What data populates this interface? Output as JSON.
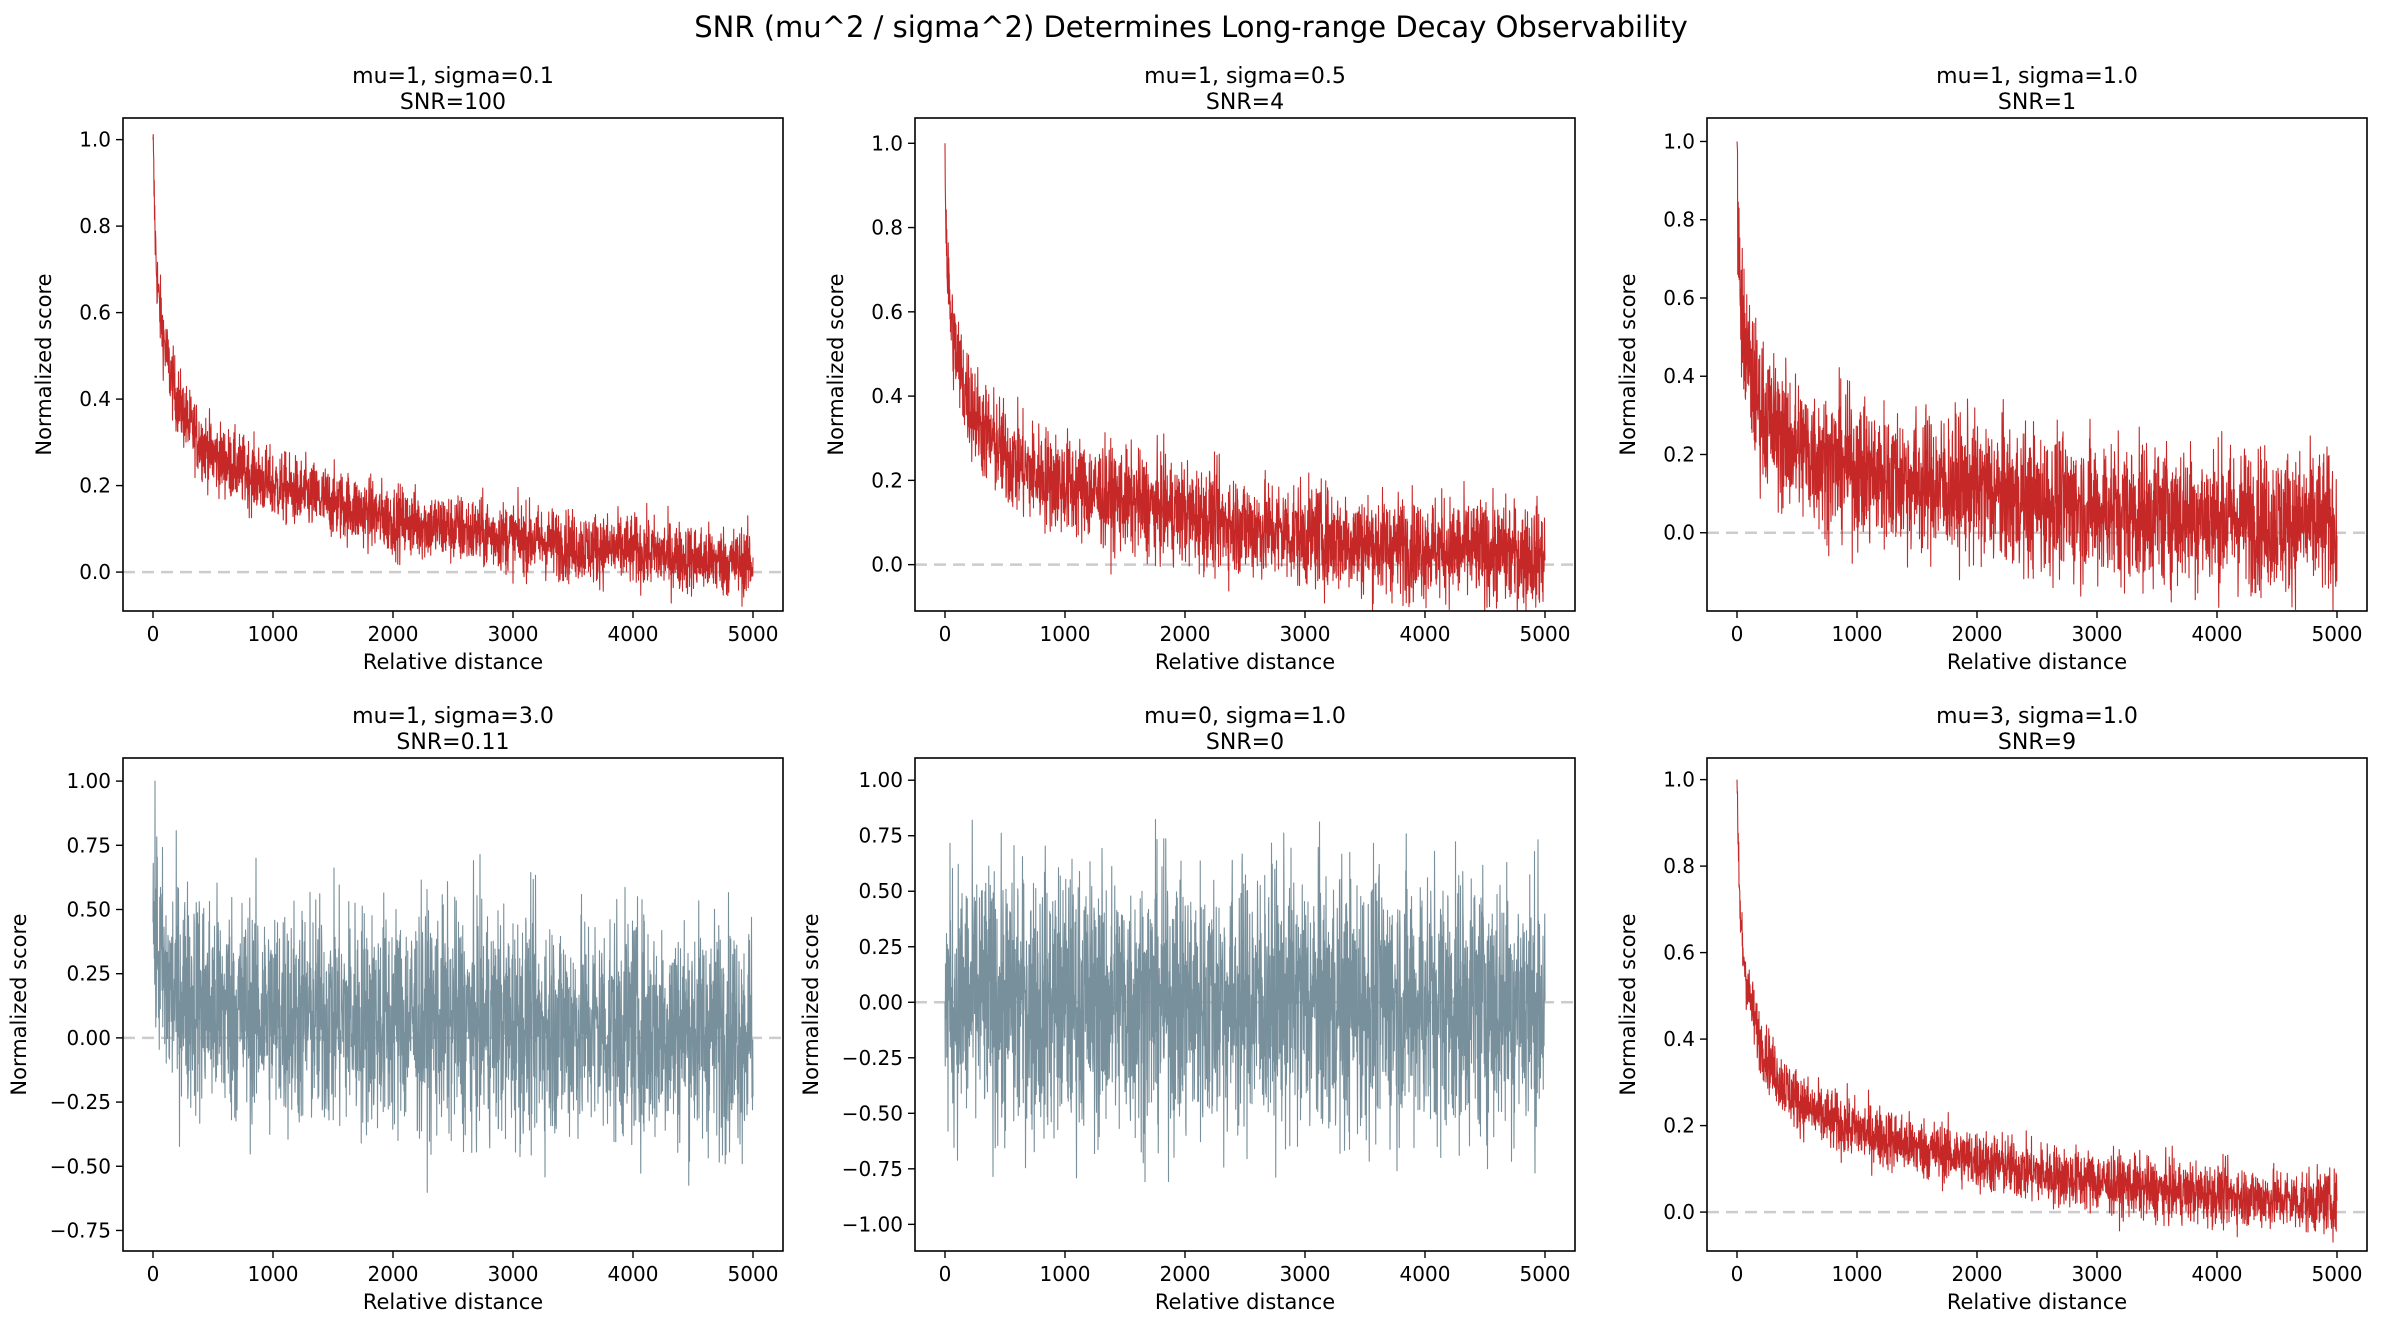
{
  "figure": {
    "title": "SNR (mu^2 / sigma^2) Determines Long-range Decay Observability"
  },
  "chart_data": [
    {
      "type": "line",
      "title": "mu=1, sigma=0.1",
      "subtitle": "SNR=100",
      "xlabel": "Relative distance",
      "ylabel": "Normalized score",
      "xlim": [
        -250,
        5250
      ],
      "ylim": [
        -0.09,
        1.05
      ],
      "xticks": [
        0,
        1000,
        2000,
        3000,
        4000,
        5000
      ],
      "yticks": [
        0.0,
        0.2,
        0.4,
        0.6,
        0.8,
        1.0
      ],
      "ytick_labels": [
        "0.0",
        "0.2",
        "0.4",
        "0.6",
        "0.8",
        "1.0"
      ],
      "baseline": 0.0,
      "color": "#c62828",
      "series": [
        {
          "x": [
            0,
            10,
            25,
            50,
            100,
            150,
            200,
            300,
            400,
            500,
            700,
            1000,
            1500,
            2000,
            2500,
            3000,
            3500,
            4000,
            4500,
            5000
          ],
          "values": [
            1.0,
            0.86,
            0.72,
            0.62,
            0.52,
            0.45,
            0.4,
            0.34,
            0.3,
            0.27,
            0.24,
            0.2,
            0.16,
            0.12,
            0.1,
            0.08,
            0.06,
            0.05,
            0.03,
            0.02
          ],
          "noise": 0.04
        }
      ]
    },
    {
      "type": "line",
      "title": "mu=1, sigma=0.5",
      "subtitle": "SNR=4",
      "xlabel": "Relative distance",
      "ylabel": "Normalized score",
      "xlim": [
        -250,
        5250
      ],
      "ylim": [
        -0.11,
        1.06
      ],
      "xticks": [
        0,
        1000,
        2000,
        3000,
        4000,
        5000
      ],
      "yticks": [
        0.0,
        0.2,
        0.4,
        0.6,
        0.8,
        1.0
      ],
      "ytick_labels": [
        "0.0",
        "0.2",
        "0.4",
        "0.6",
        "0.8",
        "1.0"
      ],
      "baseline": 0.0,
      "color": "#c62828",
      "series": [
        {
          "x": [
            0,
            10,
            25,
            50,
            100,
            150,
            200,
            300,
            400,
            500,
            700,
            1000,
            1500,
            2000,
            2500,
            3000,
            3500,
            4000,
            4500,
            5000
          ],
          "values": [
            1.0,
            0.78,
            0.68,
            0.58,
            0.49,
            0.43,
            0.39,
            0.33,
            0.29,
            0.26,
            0.22,
            0.19,
            0.15,
            0.12,
            0.09,
            0.07,
            0.05,
            0.04,
            0.03,
            0.02
          ],
          "noise": 0.06
        }
      ]
    },
    {
      "type": "line",
      "title": "mu=1, sigma=1.0",
      "subtitle": "SNR=1",
      "xlabel": "Relative distance",
      "ylabel": "Normalized score",
      "xlim": [
        -250,
        5250
      ],
      "ylim": [
        -0.2,
        1.06
      ],
      "xticks": [
        0,
        1000,
        2000,
        3000,
        4000,
        5000
      ],
      "yticks": [
        0.0,
        0.2,
        0.4,
        0.6,
        0.8,
        1.0
      ],
      "ytick_labels": [
        "0.0",
        "0.2",
        "0.4",
        "0.6",
        "0.8",
        "1.0"
      ],
      "baseline": 0.0,
      "color": "#c62828",
      "series": [
        {
          "x": [
            0,
            10,
            25,
            50,
            100,
            150,
            200,
            300,
            400,
            500,
            700,
            1000,
            1500,
            2000,
            2500,
            3000,
            3500,
            4000,
            4500,
            5000
          ],
          "values": [
            1.0,
            0.75,
            0.62,
            0.52,
            0.42,
            0.36,
            0.32,
            0.27,
            0.24,
            0.22,
            0.19,
            0.16,
            0.13,
            0.11,
            0.08,
            0.06,
            0.05,
            0.04,
            0.03,
            0.02
          ],
          "noise": 0.09
        }
      ]
    },
    {
      "type": "line",
      "title": "mu=1, sigma=3.0",
      "subtitle": "SNR=0.11",
      "xlabel": "Relative distance",
      "ylabel": "Normalized score",
      "xlim": [
        -250,
        5250
      ],
      "ylim": [
        -0.83,
        1.09
      ],
      "xticks": [
        0,
        1000,
        2000,
        3000,
        4000,
        5000
      ],
      "yticks": [
        -0.75,
        -0.5,
        -0.25,
        0.0,
        0.25,
        0.5,
        0.75,
        1.0
      ],
      "ytick_labels": [
        "−0.75",
        "−0.50",
        "−0.25",
        "0.00",
        "0.25",
        "0.50",
        "0.75",
        "1.00"
      ],
      "baseline": 0.0,
      "color": "#78909c",
      "series": [
        {
          "x": [
            0,
            100,
            500,
            1000,
            2000,
            3000,
            4000,
            5000
          ],
          "values": [
            0.45,
            0.2,
            0.12,
            0.09,
            0.07,
            0.05,
            0.04,
            0.03
          ],
          "noise": 0.22
        }
      ]
    },
    {
      "type": "line",
      "title": "mu=0, sigma=1.0",
      "subtitle": "SNR=0",
      "xlabel": "Relative distance",
      "ylabel": "Normalized score",
      "xlim": [
        -250,
        5250
      ],
      "ylim": [
        -1.12,
        1.1
      ],
      "xticks": [
        0,
        1000,
        2000,
        3000,
        4000,
        5000
      ],
      "yticks": [
        -1.0,
        -0.75,
        -0.5,
        -0.25,
        0.0,
        0.25,
        0.5,
        0.75,
        1.0
      ],
      "ytick_labels": [
        "−1.00",
        "−0.75",
        "−0.50",
        "−0.25",
        "0.00",
        "0.25",
        "0.50",
        "0.75",
        "1.00"
      ],
      "baseline": 0.0,
      "color": "#78909c",
      "series": [
        {
          "x": [
            0,
            5000
          ],
          "values": [
            0.0,
            0.0
          ],
          "noise": 0.3
        }
      ]
    },
    {
      "type": "line",
      "title": "mu=3, sigma=1.0",
      "subtitle": "SNR=9",
      "xlabel": "Relative distance",
      "ylabel": "Normalized score",
      "xlim": [
        -250,
        5250
      ],
      "ylim": [
        -0.09,
        1.05
      ],
      "xticks": [
        0,
        1000,
        2000,
        3000,
        4000,
        5000
      ],
      "yticks": [
        0.0,
        0.2,
        0.4,
        0.6,
        0.8,
        1.0
      ],
      "ytick_labels": [
        "0.0",
        "0.2",
        "0.4",
        "0.6",
        "0.8",
        "1.0"
      ],
      "baseline": 0.0,
      "color": "#c62828",
      "series": [
        {
          "x": [
            0,
            10,
            25,
            50,
            100,
            150,
            200,
            300,
            400,
            500,
            700,
            1000,
            1500,
            2000,
            2500,
            3000,
            3500,
            4000,
            4500,
            5000
          ],
          "values": [
            1.0,
            0.82,
            0.7,
            0.6,
            0.5,
            0.44,
            0.39,
            0.33,
            0.29,
            0.26,
            0.22,
            0.19,
            0.15,
            0.12,
            0.09,
            0.07,
            0.05,
            0.04,
            0.03,
            0.02
          ],
          "noise": 0.035
        }
      ]
    }
  ]
}
